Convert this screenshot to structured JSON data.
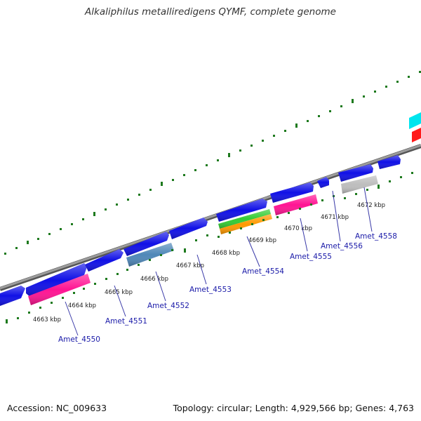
{
  "title": "Alkaliphilus metalliredigens QYMF, complete genome",
  "footer": {
    "accession": "Accession: NC_009633",
    "topology": "Topology: circular; Length: 4,929,566 bp; Genes: 4,763"
  },
  "colors": {
    "backbone": "#8c8c8c",
    "tick": "#1e7a1e",
    "cds": "#1010e6",
    "pink": "#ff1493",
    "steel": "#4f87b8",
    "green": "#33cc33",
    "orange": "#ff9900",
    "gray": "#bdbdbd",
    "cyan": "#00e5ee",
    "red": "#ff1a1a",
    "label": "#1a1aa8"
  },
  "kbp_labels": [
    "4663 kbp",
    "4664 kbp",
    "4665 kbp",
    "4666 kbp",
    "4667 kbp",
    "4668 kbp",
    "4669 kbp",
    "4670 kbp",
    "4671 kbp",
    "4672 kbp"
  ],
  "gene_labels": [
    "Amet_4550",
    "Amet_4551",
    "Amet_4552",
    "Amet_4553",
    "Amet_4554",
    "Amet_4555",
    "Amet_4556",
    "Amet_4558"
  ]
}
